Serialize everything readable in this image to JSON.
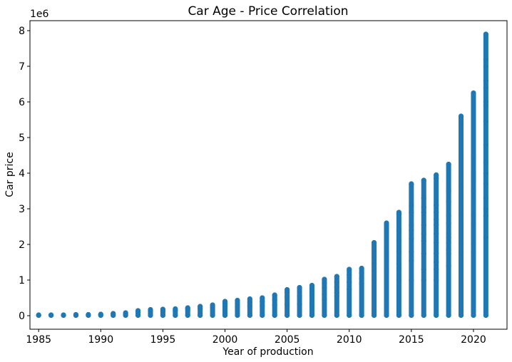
{
  "chart_data": {
    "type": "scatter",
    "title": "Car Age - Price Correlation",
    "xlabel": "Year of production",
    "ylabel": "Car price",
    "y_offset_label": "1e6",
    "xlim": [
      1984.3,
      2022.7
    ],
    "ylim": [
      -0.38,
      8.28
    ],
    "xticks": [
      1985,
      1990,
      1995,
      2000,
      2005,
      2010,
      2015,
      2020
    ],
    "yticks": [
      0,
      1,
      2,
      3,
      4,
      5,
      6,
      7,
      8
    ],
    "y_unit": "millions",
    "color": "#1f77b4",
    "grid": false,
    "series": [
      {
        "points_by_year": [
          {
            "x": 1985,
            "y": [
              0.01,
              0.02
            ]
          },
          {
            "x": 1986,
            "y": [
              0.01,
              0.02
            ]
          },
          {
            "x": 1987,
            "y": [
              0.01,
              0.02
            ]
          },
          {
            "x": 1988,
            "y": [
              0.01,
              0.03
            ]
          },
          {
            "x": 1989,
            "y": [
              0.01,
              0.03
            ]
          },
          {
            "x": 1990,
            "y": [
              0.01,
              0.04
            ]
          },
          {
            "x": 1991,
            "y": [
              0.01,
              0.06
            ]
          },
          {
            "x": 1992,
            "y": [
              0.01,
              0.08
            ]
          },
          {
            "x": 1993,
            "y": [
              0.01,
              0.1,
              0.14
            ]
          },
          {
            "x": 1994,
            "y": [
              0.01,
              0.12,
              0.17
            ]
          },
          {
            "x": 1995,
            "y": [
              0.01,
              0.13,
              0.18
            ]
          },
          {
            "x": 1996,
            "y": [
              0.01,
              0.14,
              0.19
            ]
          },
          {
            "x": 1997,
            "y": [
              0.01,
              0.18,
              0.22
            ]
          },
          {
            "x": 1998,
            "y": [
              0.01,
              0.2,
              0.26
            ]
          },
          {
            "x": 1999,
            "y": [
              0.01,
              0.22,
              0.3
            ]
          },
          {
            "x": 2000,
            "y": [
              0.01,
              0.25,
              0.33,
              0.4
            ]
          },
          {
            "x": 2001,
            "y": [
              0.01,
              0.25,
              0.35,
              0.43
            ]
          },
          {
            "x": 2002,
            "y": [
              0.01,
              0.27,
              0.38,
              0.47
            ]
          },
          {
            "x": 2003,
            "y": [
              0.01,
              0.28,
              0.4,
              0.5
            ]
          },
          {
            "x": 2004,
            "y": [
              0.01,
              0.3,
              0.45,
              0.58
            ]
          },
          {
            "x": 2005,
            "y": [
              0.01,
              0.32,
              0.52,
              0.65,
              0.73
            ]
          },
          {
            "x": 2006,
            "y": [
              0.01,
              0.32,
              0.55,
              0.79
            ]
          },
          {
            "x": 2007,
            "y": [
              0.01,
              0.35,
              0.65,
              0.75,
              0.85
            ]
          },
          {
            "x": 2008,
            "y": [
              0.01,
              0.45,
              0.6,
              0.78,
              0.9,
              1.02
            ]
          },
          {
            "x": 2009,
            "y": [
              0.01,
              0.55,
              0.65,
              0.8,
              0.95,
              1.1
            ]
          },
          {
            "x": 2010,
            "y": [
              0.01,
              0.75,
              0.95,
              1.15,
              1.3
            ]
          },
          {
            "x": 2011,
            "y": [
              0.01,
              0.9,
              1.05,
              1.2,
              1.33
            ]
          },
          {
            "x": 2012,
            "y": [
              0.01,
              1.0,
              1.25,
              1.45,
              1.65,
              1.75,
              2.05
            ]
          },
          {
            "x": 2013,
            "y": [
              0.01,
              1.2,
              1.6,
              1.75,
              2.1,
              2.3,
              2.45,
              2.6
            ]
          },
          {
            "x": 2014,
            "y": [
              0.01,
              1.0,
              1.3,
              1.45,
              1.8,
              2.1,
              2.4,
              2.85,
              2.9
            ]
          },
          {
            "x": 2015,
            "y": [
              0.01,
              1.0,
              1.55,
              1.8,
              2.15,
              2.4,
              2.55,
              2.9,
              3.1,
              3.7
            ]
          },
          {
            "x": 2016,
            "y": [
              0.01,
              1.0,
              1.3,
              1.75,
              2.1,
              2.3,
              2.55,
              2.9,
              3.05,
              3.3,
              3.8
            ]
          },
          {
            "x": 2017,
            "y": [
              0.01,
              1.0,
              1.3,
              1.5,
              1.75,
              2.05,
              2.3,
              2.55,
              2.7,
              2.9,
              3.1,
              3.85,
              3.95
            ]
          },
          {
            "x": 2018,
            "y": [
              0.01,
              1.4,
              1.75,
              1.85,
              2.05,
              2.2,
              2.3,
              2.6,
              2.8,
              3.2,
              3.5,
              4.25
            ]
          },
          {
            "x": 2019,
            "y": [
              0.01,
              1.6,
              1.8,
              2.0,
              2.2,
              2.4,
              2.5,
              2.8,
              3.0,
              3.3,
              3.6,
              3.8,
              4.5,
              5.35,
              5.6
            ]
          },
          {
            "x": 2020,
            "y": [
              0.01,
              1.8,
              2.0,
              2.3,
              2.6,
              2.8,
              3.1,
              3.5,
              3.8,
              4.0,
              4.5,
              6.25
            ]
          },
          {
            "x": 2021,
            "y": [
              0.01,
              2.2,
              2.8,
              3.0,
              3.3,
              3.7,
              4.0,
              4.3,
              4.8,
              5.45,
              5.9,
              6.0,
              6.4,
              6.6,
              7.0,
              7.2,
              7.9
            ]
          }
        ]
      }
    ]
  }
}
